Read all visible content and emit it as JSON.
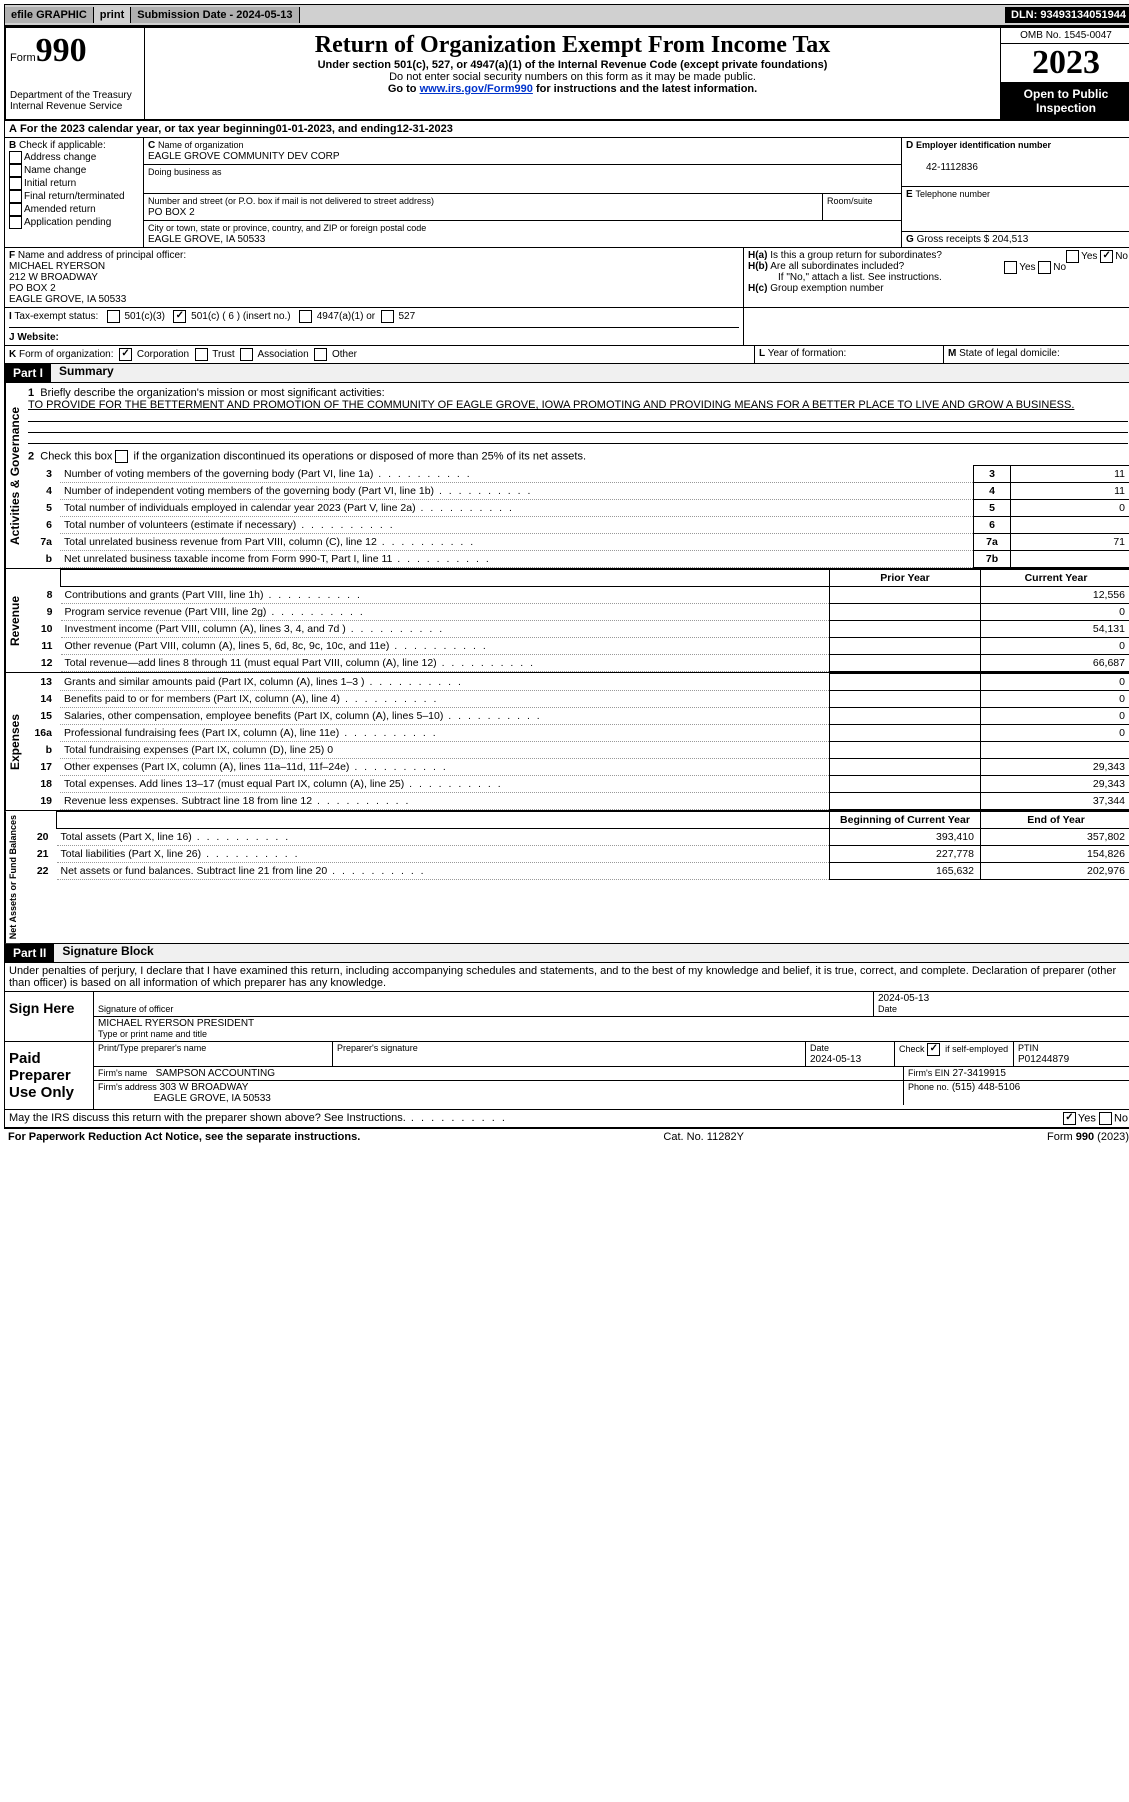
{
  "topbar": {
    "efile": "efile GRAPHIC",
    "print": "print",
    "submission": "Submission Date - 2024-05-13",
    "dln": "DLN: 93493134051944"
  },
  "header": {
    "form_prefix": "Form",
    "form_number": "990",
    "title": "Return of Organization Exempt From Income Tax",
    "subtitle1": "Under section 501(c), 527, or 4947(a)(1) of the Internal Revenue Code (except private foundations)",
    "subtitle2": "Do not enter social security numbers on this form as it may be made public.",
    "subtitle3_pre": "Go to ",
    "subtitle3_link": "www.irs.gov/Form990",
    "subtitle3_post": " for instructions and the latest information.",
    "dept": "Department of the Treasury",
    "irs": "Internal Revenue Service",
    "omb": "OMB No. 1545-0047",
    "year": "2023",
    "inspection": "Open to Public Inspection"
  },
  "A": {
    "text_pre": "For the 2023 calendar year, or tax year beginning ",
    "begin": "01-01-2023",
    "mid": ", and ending ",
    "end": "12-31-2023"
  },
  "B": {
    "label": "Check if applicable:",
    "items": [
      "Address change",
      "Name change",
      "Initial return",
      "Final return/terminated",
      "Amended return",
      "Application pending"
    ]
  },
  "C": {
    "name_label": "Name of organization",
    "name": "EAGLE GROVE COMMUNITY DEV CORP",
    "dba_label": "Doing business as",
    "dba": "",
    "addr_label": "Number and street (or P.O. box if mail is not delivered to street address)",
    "addr": "PO BOX 2",
    "room_label": "Room/suite",
    "city_label": "City or town, state or province, country, and ZIP or foreign postal code",
    "city": "EAGLE GROVE, IA  50533"
  },
  "D": {
    "label": "Employer identification number",
    "value": "42-1112836"
  },
  "E": {
    "label": "Telephone number",
    "value": ""
  },
  "G": {
    "label": "Gross receipts $",
    "value": "204,513"
  },
  "F": {
    "label": "Name and address of principal officer:",
    "name": "MICHAEL RYERSON",
    "l1": "212 W BROADWAY",
    "l2": "PO BOX 2",
    "l3": "EAGLE GROVE, IA  50533"
  },
  "H": {
    "a": "Is this a group return for subordinates?",
    "b": "Are all subordinates included?",
    "b2": "If \"No,\" attach a list. See instructions.",
    "c": "Group exemption number",
    "yes": "Yes",
    "no": "No"
  },
  "I": {
    "label": "Tax-exempt status:",
    "opts": [
      "501(c)(3)",
      "501(c) ( 6 ) (insert no.)",
      "4947(a)(1) or",
      "527"
    ]
  },
  "J": {
    "label": "Website:",
    "value": ""
  },
  "K": {
    "label": "Form of organization:",
    "opts": [
      "Corporation",
      "Trust",
      "Association",
      "Other"
    ]
  },
  "L": {
    "label": "Year of formation:",
    "value": ""
  },
  "M": {
    "label": "State of legal domicile:",
    "value": ""
  },
  "part1": {
    "header": "Part I",
    "title": "Summary",
    "mission_label": "Briefly describe the organization's mission or most significant activities:",
    "mission": "TO PROVIDE FOR THE BETTERMENT AND PROMOTION OF THE COMMUNITY OF EAGLE GROVE, IOWA PROMOTING AND PROVIDING MEANS FOR A BETTER PLACE TO LIVE AND GROW A BUSINESS.",
    "line2": "Check this box",
    "line2b": "if the organization discontinued its operations or disposed of more than 25% of its net assets."
  },
  "governance": {
    "label": "Activities & Governance",
    "rows": [
      {
        "n": "3",
        "t": "Number of voting members of the governing body (Part VI, line 1a)",
        "b": "3",
        "v": "11"
      },
      {
        "n": "4",
        "t": "Number of independent voting members of the governing body (Part VI, line 1b)",
        "b": "4",
        "v": "11"
      },
      {
        "n": "5",
        "t": "Total number of individuals employed in calendar year 2023 (Part V, line 2a)",
        "b": "5",
        "v": "0"
      },
      {
        "n": "6",
        "t": "Total number of volunteers (estimate if necessary)",
        "b": "6",
        "v": ""
      },
      {
        "n": "7a",
        "t": "Total unrelated business revenue from Part VIII, column (C), line 12",
        "b": "7a",
        "v": "71"
      },
      {
        "n": "b",
        "t": "Net unrelated business taxable income from Form 990-T, Part I, line 11",
        "b": "7b",
        "v": ""
      }
    ]
  },
  "revenue": {
    "label": "Revenue",
    "prior_hdr": "Prior Year",
    "curr_hdr": "Current Year",
    "rows": [
      {
        "n": "8",
        "t": "Contributions and grants (Part VIII, line 1h)",
        "p": "",
        "c": "12,556"
      },
      {
        "n": "9",
        "t": "Program service revenue (Part VIII, line 2g)",
        "p": "",
        "c": "0"
      },
      {
        "n": "10",
        "t": "Investment income (Part VIII, column (A), lines 3, 4, and 7d )",
        "p": "",
        "c": "54,131"
      },
      {
        "n": "11",
        "t": "Other revenue (Part VIII, column (A), lines 5, 6d, 8c, 9c, 10c, and 11e)",
        "p": "",
        "c": "0"
      },
      {
        "n": "12",
        "t": "Total revenue—add lines 8 through 11 (must equal Part VIII, column (A), line 12)",
        "p": "",
        "c": "66,687"
      }
    ]
  },
  "expenses": {
    "label": "Expenses",
    "rows": [
      {
        "n": "13",
        "t": "Grants and similar amounts paid (Part IX, column (A), lines 1–3 )",
        "p": "",
        "c": "0"
      },
      {
        "n": "14",
        "t": "Benefits paid to or for members (Part IX, column (A), line 4)",
        "p": "",
        "c": "0"
      },
      {
        "n": "15",
        "t": "Salaries, other compensation, employee benefits (Part IX, column (A), lines 5–10)",
        "p": "",
        "c": "0"
      },
      {
        "n": "16a",
        "t": "Professional fundraising fees (Part IX, column (A), line 11e)",
        "p": "",
        "c": "0"
      },
      {
        "n": "b",
        "t": "Total fundraising expenses (Part IX, column (D), line 25) 0",
        "shade": true
      },
      {
        "n": "17",
        "t": "Other expenses (Part IX, column (A), lines 11a–11d, 11f–24e)",
        "p": "",
        "c": "29,343"
      },
      {
        "n": "18",
        "t": "Total expenses. Add lines 13–17 (must equal Part IX, column (A), line 25)",
        "p": "",
        "c": "29,343"
      },
      {
        "n": "19",
        "t": "Revenue less expenses. Subtract line 18 from line 12",
        "p": "",
        "c": "37,344"
      }
    ]
  },
  "netassets": {
    "label": "Net Assets or Fund Balances",
    "begin_hdr": "Beginning of Current Year",
    "end_hdr": "End of Year",
    "rows": [
      {
        "n": "20",
        "t": "Total assets (Part X, line 16)",
        "p": "393,410",
        "c": "357,802"
      },
      {
        "n": "21",
        "t": "Total liabilities (Part X, line 26)",
        "p": "227,778",
        "c": "154,826"
      },
      {
        "n": "22",
        "t": "Net assets or fund balances. Subtract line 21 from line 20",
        "p": "165,632",
        "c": "202,976"
      }
    ]
  },
  "part2": {
    "header": "Part II",
    "title": "Signature Block",
    "perjury": "Under penalties of perjury, I declare that I have examined this return, including accompanying schedules and statements, and to the best of my knowledge and belief, it is true, correct, and complete. Declaration of preparer (other than officer) is based on all information of which preparer has any knowledge."
  },
  "sign": {
    "here": "Sign Here",
    "sig_label": "Signature of officer",
    "name": "MICHAEL RYERSON  PRESIDENT",
    "name_label": "Type or print name and title",
    "date_label": "Date",
    "date": "2024-05-13"
  },
  "preparer": {
    "label": "Paid Preparer Use Only",
    "print_label": "Print/Type preparer's name",
    "sig_label": "Preparer's signature",
    "date_label": "Date",
    "date": "2024-05-13",
    "check_label": "Check",
    "self_emp": "if self-employed",
    "ptin_label": "PTIN",
    "ptin": "P01244879",
    "firm_name_label": "Firm's name",
    "firm_name": "SAMPSON ACCOUNTING",
    "firm_ein_label": "Firm's EIN",
    "firm_ein": "27-3419915",
    "firm_addr_label": "Firm's address",
    "firm_addr1": "303 W BROADWAY",
    "firm_addr2": "EAGLE GROVE, IA  50533",
    "phone_label": "Phone no.",
    "phone": "(515) 448-5106"
  },
  "discuss": {
    "text": "May the IRS discuss this return with the preparer shown above? See Instructions.",
    "yes": "Yes",
    "no": "No"
  },
  "footer": {
    "left": "For Paperwork Reduction Act Notice, see the separate instructions.",
    "mid": "Cat. No. 11282Y",
    "right": "Form 990 (2023)"
  },
  "labels": {
    "A": "A",
    "B": "B",
    "C": "C",
    "D": "D",
    "E": "E",
    "F": "F",
    "G": "G",
    "H_a": "H(a)",
    "H_b": "H(b)",
    "H_c": "H(c)",
    "I": "I",
    "J": "J",
    "K": "K",
    "L": "L",
    "M": "M",
    "1": "1",
    "2": "2"
  }
}
